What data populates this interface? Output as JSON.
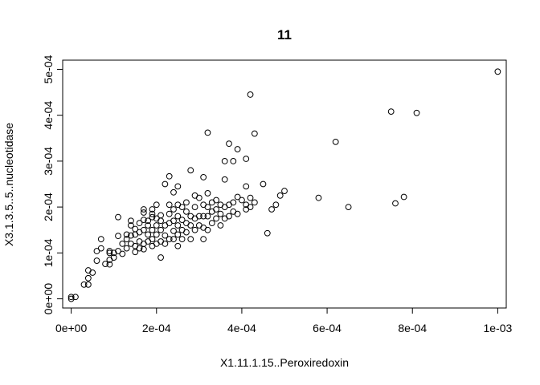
{
  "chart_data": {
    "type": "scatter",
    "title": "11",
    "xlabel": "X1.11.1.15..Peroxiredoxin",
    "ylabel": "X3.1.3.5..5..nucleotidase",
    "xlim": [
      -2e-05,
      0.00102
    ],
    "ylim": [
      -2e-05,
      0.00052
    ],
    "x_ticks": [
      0,
      0.0002,
      0.0004,
      0.0006,
      0.0008,
      0.001
    ],
    "x_tick_labels": [
      "0e+00",
      "2e-04",
      "4e-04",
      "6e-04",
      "8e-04",
      "1e-03"
    ],
    "y_ticks": [
      0,
      0.0001,
      0.0002,
      0.0003,
      0.0004,
      0.0005
    ],
    "y_tick_labels": [
      "0e+00",
      "1e-04",
      "2e-04",
      "3e-04",
      "4e-04",
      "5e-04"
    ],
    "grid": false,
    "legend": "none",
    "marker": "open-circle",
    "points": [
      [
        0.0,
        0.0
      ],
      [
        0.0,
        4e-06
      ],
      [
        1e-05,
        4e-06
      ],
      [
        3e-05,
        3.1e-05
      ],
      [
        4e-05,
        3.1e-05
      ],
      [
        4e-05,
        4.5e-05
      ],
      [
        4e-05,
        6.2e-05
      ],
      [
        5e-05,
        5.7e-05
      ],
      [
        6e-05,
        8.3e-05
      ],
      [
        6e-05,
        0.000104
      ],
      [
        7e-05,
        0.00011
      ],
      [
        7e-05,
        0.00013
      ],
      [
        8e-05,
        7.6e-05
      ],
      [
        9e-05,
        7.5e-05
      ],
      [
        9e-05,
        8.5e-05
      ],
      [
        9e-05,
        0.0001
      ],
      [
        9e-05,
        0.000104
      ],
      [
        0.0001,
        9e-05
      ],
      [
        0.0001,
        0.0001
      ],
      [
        0.00011,
        0.000104
      ],
      [
        0.00011,
        0.000137
      ],
      [
        0.00011,
        0.000178
      ],
      [
        0.00012,
        9.8e-05
      ],
      [
        0.00012,
        0.00012
      ],
      [
        0.00013,
        0.00011
      ],
      [
        0.00013,
        0.00013
      ],
      [
        0.00013,
        0.00014
      ],
      [
        0.00014,
        0.00012
      ],
      [
        0.00014,
        0.000138
      ],
      [
        0.00014,
        0.00016
      ],
      [
        0.00014,
        0.00017
      ],
      [
        0.00015,
        0.000102
      ],
      [
        0.00015,
        0.000115
      ],
      [
        0.00015,
        0.00014
      ],
      [
        0.00015,
        0.000152
      ],
      [
        0.00016,
        0.00011
      ],
      [
        0.00016,
        0.000125
      ],
      [
        0.00016,
        0.000145
      ],
      [
        0.00016,
        0.000165
      ],
      [
        0.00017,
        0.000108
      ],
      [
        0.00017,
        0.00012
      ],
      [
        0.00017,
        0.00015
      ],
      [
        0.00017,
        0.000172
      ],
      [
        0.00017,
        0.000195
      ],
      [
        0.00017,
        0.000188
      ],
      [
        0.00018,
        0.000125
      ],
      [
        0.00018,
        0.00014
      ],
      [
        0.00018,
        0.00016
      ],
      [
        0.00018,
        0.00017
      ],
      [
        0.00019,
        0.000115
      ],
      [
        0.00019,
        0.00013
      ],
      [
        0.00019,
        0.00015
      ],
      [
        0.00019,
        0.000178
      ],
      [
        0.00019,
        0.000185
      ],
      [
        0.00019,
        0.000195
      ],
      [
        0.0002,
        0.00012
      ],
      [
        0.0002,
        0.00014
      ],
      [
        0.0002,
        0.00016
      ],
      [
        0.0002,
        0.000175
      ],
      [
        0.0002,
        0.000205
      ],
      [
        0.00021,
        9e-05
      ],
      [
        0.00021,
        0.000125
      ],
      [
        0.00021,
        0.00015
      ],
      [
        0.00021,
        0.00017
      ],
      [
        0.00021,
        0.000182
      ],
      [
        0.00022,
        0.00012
      ],
      [
        0.00022,
        0.000138
      ],
      [
        0.00022,
        0.00016
      ],
      [
        0.00022,
        0.00025
      ],
      [
        0.00023,
        0.00013
      ],
      [
        0.00023,
        0.000165
      ],
      [
        0.00023,
        0.000185
      ],
      [
        0.00023,
        0.000205
      ],
      [
        0.00023,
        0.000267
      ],
      [
        0.00024,
        0.00013
      ],
      [
        0.00024,
        0.000148
      ],
      [
        0.00024,
        0.00017
      ],
      [
        0.00024,
        0.000195
      ],
      [
        0.00024,
        0.000232
      ],
      [
        0.00025,
        0.000115
      ],
      [
        0.00025,
        0.00014
      ],
      [
        0.00025,
        0.00016
      ],
      [
        0.00025,
        0.00018
      ],
      [
        0.00025,
        0.000205
      ],
      [
        0.00025,
        0.000245
      ],
      [
        0.00026,
        0.00013
      ],
      [
        0.00026,
        0.00015
      ],
      [
        0.00026,
        0.000172
      ],
      [
        0.00026,
        0.0002
      ],
      [
        0.00027,
        0.000145
      ],
      [
        0.00027,
        0.000165
      ],
      [
        0.00027,
        0.00019
      ],
      [
        0.00027,
        0.00021
      ],
      [
        0.00028,
        0.00013
      ],
      [
        0.00028,
        0.00016
      ],
      [
        0.00028,
        0.00018
      ],
      [
        0.00028,
        0.00028
      ],
      [
        0.00029,
        0.00015
      ],
      [
        0.00029,
        0.000175
      ],
      [
        0.00029,
        0.0002
      ],
      [
        0.00029,
        0.000225
      ],
      [
        0.0003,
        0.00016
      ],
      [
        0.0003,
        0.00018
      ],
      [
        0.0003,
        0.00022
      ],
      [
        0.00031,
        0.00013
      ],
      [
        0.00031,
        0.000155
      ],
      [
        0.00031,
        0.00018
      ],
      [
        0.00031,
        0.000205
      ],
      [
        0.00031,
        0.000265
      ],
      [
        0.00032,
        0.00015
      ],
      [
        0.00032,
        0.00018
      ],
      [
        0.00032,
        0.0002
      ],
      [
        0.00032,
        0.00023
      ],
      [
        0.00032,
        0.000362
      ],
      [
        0.00033,
        0.000165
      ],
      [
        0.00033,
        0.00019
      ],
      [
        0.00033,
        0.00021
      ],
      [
        0.00034,
        0.000175
      ],
      [
        0.00034,
        0.000195
      ],
      [
        0.00034,
        0.000215
      ],
      [
        0.00035,
        0.00016
      ],
      [
        0.00035,
        0.000185
      ],
      [
        0.00035,
        0.000205
      ],
      [
        0.00036,
        0.000175
      ],
      [
        0.00036,
        0.0002
      ],
      [
        0.00036,
        0.00026
      ],
      [
        0.00036,
        0.0003
      ],
      [
        0.00037,
        0.00018
      ],
      [
        0.00037,
        0.000205
      ],
      [
        0.00037,
        0.000338
      ],
      [
        0.00038,
        0.00019
      ],
      [
        0.00038,
        0.00021
      ],
      [
        0.00038,
        0.0003
      ],
      [
        0.00039,
        0.000185
      ],
      [
        0.00039,
        0.000222
      ],
      [
        0.00039,
        0.000326
      ],
      [
        0.0004,
        0.000215
      ],
      [
        0.00041,
        0.000195
      ],
      [
        0.00041,
        0.000205
      ],
      [
        0.00041,
        0.000245
      ],
      [
        0.00041,
        0.000305
      ],
      [
        0.00042,
        0.0002
      ],
      [
        0.00042,
        0.00022
      ],
      [
        0.00042,
        0.000445
      ],
      [
        0.00043,
        0.00021
      ],
      [
        0.00043,
        0.00036
      ],
      [
        0.00045,
        0.00025
      ],
      [
        0.00046,
        0.000143
      ],
      [
        0.00047,
        0.000195
      ],
      [
        0.00048,
        0.000205
      ],
      [
        0.00049,
        0.000225
      ],
      [
        0.0005,
        0.000235
      ],
      [
        0.00058,
        0.00022
      ],
      [
        0.00062,
        0.000342
      ],
      [
        0.00065,
        0.0002
      ],
      [
        0.00075,
        0.000408
      ],
      [
        0.00076,
        0.000208
      ],
      [
        0.00078,
        0.000222
      ],
      [
        0.00081,
        0.000405
      ],
      [
        0.001,
        0.000495
      ]
    ]
  }
}
